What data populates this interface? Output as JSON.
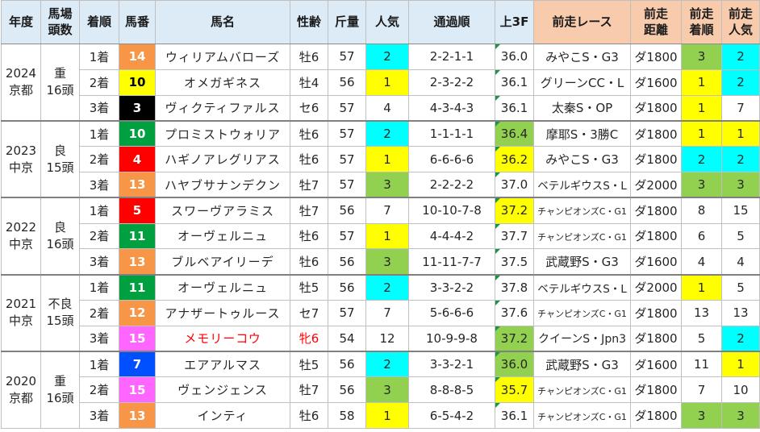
{
  "headers": [
    "年度",
    "馬場\n頭数",
    "着順",
    "馬番",
    "馬名",
    "性齢",
    "斤量",
    "人気",
    "通過順",
    "上3F",
    "前走レース",
    "前走\n距離",
    "前走\n着順",
    "前走\n人気"
  ],
  "colors": {
    "header_bg": "#DDEBF7",
    "header_prev_bg": "#F8CBAD",
    "highlight": {
      "yellow": "#FFFF00",
      "cyan": "#00FFFF",
      "green": "#92D050"
    },
    "waku": {
      "black": "#000000",
      "red": "#FF0000",
      "blue": "#0050FF",
      "yellow": "#FFFF00",
      "green": "#00A040",
      "orange": "#F79646",
      "pink": "#FF66FF"
    },
    "waku_text": {
      "black": "#FFFFFF",
      "red": "#FFFFFF",
      "blue": "#FFFFFF",
      "yellow": "#000000",
      "green": "#FFFFFF",
      "orange": "#FFFFFF",
      "pink": "#FFFFFF"
    }
  },
  "groups": [
    {
      "year": "2024",
      "venue": "京都",
      "going": "重",
      "field": "16頭",
      "rows": [
        {
          "finish": "1着",
          "num": "14",
          "waku": "orange",
          "name": "ウィリアムバローズ",
          "sexage": "牡6",
          "weight": "57",
          "pop": "2",
          "pop_hl": "cyan",
          "passing": "2-2-1-1",
          "last3f": "36.0",
          "last3f_hl": "",
          "prev_race": "みやこS・G3",
          "prev_dist": "ダ1800",
          "prev_finish": "3",
          "prev_finish_hl": "green",
          "prev_pop": "2",
          "prev_pop_hl": "cyan"
        },
        {
          "finish": "2着",
          "num": "10",
          "waku": "yellow",
          "name": "オメガギネス",
          "sexage": "牡4",
          "weight": "56",
          "pop": "1",
          "pop_hl": "yellow",
          "passing": "2-3-2-2",
          "last3f": "36.1",
          "last3f_hl": "",
          "prev_race": "グリーンCC・L",
          "prev_dist": "ダ1600",
          "prev_finish": "1",
          "prev_finish_hl": "yellow",
          "prev_pop": "2",
          "prev_pop_hl": "cyan"
        },
        {
          "finish": "3着",
          "num": "3",
          "waku": "black",
          "name": "ヴィクティファルス",
          "sexage": "セ6",
          "weight": "57",
          "pop": "4",
          "pop_hl": "",
          "passing": "4-3-4-3",
          "last3f": "36.1",
          "last3f_hl": "",
          "prev_race": "太秦S・OP",
          "prev_dist": "ダ1800",
          "prev_finish": "1",
          "prev_finish_hl": "yellow",
          "prev_pop": "7",
          "prev_pop_hl": ""
        }
      ]
    },
    {
      "year": "2023",
      "venue": "中京",
      "going": "良",
      "field": "15頭",
      "rows": [
        {
          "finish": "1着",
          "num": "10",
          "waku": "green",
          "name": "プロミストウォリア",
          "sexage": "牡6",
          "weight": "57",
          "pop": "2",
          "pop_hl": "cyan",
          "passing": "1-1-1-1",
          "last3f": "36.4",
          "last3f_hl": "green",
          "prev_race": "摩耶S・3勝C",
          "prev_dist": "ダ1800",
          "prev_finish": "1",
          "prev_finish_hl": "yellow",
          "prev_pop": "1",
          "prev_pop_hl": "yellow"
        },
        {
          "finish": "2着",
          "num": "4",
          "waku": "red",
          "name": "ハギノアレグリアス",
          "sexage": "牡6",
          "weight": "57",
          "pop": "1",
          "pop_hl": "yellow",
          "passing": "6-6-6-6",
          "last3f": "36.2",
          "last3f_hl": "yellow",
          "prev_race": "みやこS・G3",
          "prev_dist": "ダ1800",
          "prev_finish": "2",
          "prev_finish_hl": "cyan",
          "prev_pop": "2",
          "prev_pop_hl": "cyan"
        },
        {
          "finish": "3着",
          "num": "13",
          "waku": "orange",
          "name": "ハヤブサナンデクン",
          "sexage": "牡7",
          "weight": "57",
          "pop": "3",
          "pop_hl": "green",
          "passing": "2-2-2-2",
          "last3f": "37.0",
          "last3f_hl": "",
          "prev_race": "ベテルギウスS・L",
          "prev_dist": "ダ2000",
          "prev_finish": "3",
          "prev_finish_hl": "green",
          "prev_pop": "3",
          "prev_pop_hl": "green"
        }
      ]
    },
    {
      "year": "2022",
      "venue": "中京",
      "going": "良",
      "field": "16頭",
      "rows": [
        {
          "finish": "1着",
          "num": "5",
          "waku": "red",
          "name": "スワーヴアラミス",
          "sexage": "牡7",
          "weight": "56",
          "pop": "7",
          "pop_hl": "",
          "passing": "10-10-7-8",
          "last3f": "37.2",
          "last3f_hl": "yellow",
          "prev_race": "チャンピオンズC・G1",
          "prev_dist": "ダ1800",
          "prev_finish": "8",
          "prev_finish_hl": "",
          "prev_pop": "15",
          "prev_pop_hl": ""
        },
        {
          "finish": "2着",
          "num": "11",
          "waku": "green",
          "name": "オーヴェルニュ",
          "sexage": "牡6",
          "weight": "57",
          "pop": "1",
          "pop_hl": "yellow",
          "passing": "4-4-4-2",
          "last3f": "37.7",
          "last3f_hl": "",
          "prev_race": "チャンピオンズC・G1",
          "prev_dist": "ダ1800",
          "prev_finish": "6",
          "prev_finish_hl": "",
          "prev_pop": "5",
          "prev_pop_hl": ""
        },
        {
          "finish": "3着",
          "num": "13",
          "waku": "orange",
          "name": "ブルベアイリーデ",
          "sexage": "牡6",
          "weight": "56",
          "pop": "3",
          "pop_hl": "green",
          "passing": "11-11-7-7",
          "last3f": "37.5",
          "last3f_hl": "",
          "prev_race": "武蔵野S・G3",
          "prev_dist": "ダ1600",
          "prev_finish": "4",
          "prev_finish_hl": "",
          "prev_pop": "4",
          "prev_pop_hl": ""
        }
      ]
    },
    {
      "year": "2021",
      "venue": "中京",
      "going": "不良",
      "field": "15頭",
      "rows": [
        {
          "finish": "1着",
          "num": "11",
          "waku": "green",
          "name": "オーヴェルニュ",
          "sexage": "牡5",
          "weight": "56",
          "pop": "2",
          "pop_hl": "cyan",
          "passing": "3-3-2-2",
          "last3f": "37.8",
          "last3f_hl": "",
          "prev_race": "ベテルギウスS・L",
          "prev_dist": "ダ2000",
          "prev_finish": "1",
          "prev_finish_hl": "yellow",
          "prev_pop": "5",
          "prev_pop_hl": ""
        },
        {
          "finish": "2着",
          "num": "12",
          "waku": "orange",
          "name": "アナザートゥルース",
          "sexage": "セ7",
          "weight": "57",
          "pop": "7",
          "pop_hl": "",
          "passing": "5-6-6-6",
          "last3f": "37.6",
          "last3f_hl": "",
          "prev_race": "チャンピオンズC・G1",
          "prev_dist": "ダ1800",
          "prev_finish": "13",
          "prev_finish_hl": "",
          "prev_pop": "13",
          "prev_pop_hl": ""
        },
        {
          "finish": "3着",
          "num": "15",
          "waku": "pink",
          "name": "メモリーコウ",
          "sexage": "牝6",
          "weight": "54",
          "pop": "12",
          "pop_hl": "",
          "passing": "10-9-9-8",
          "last3f": "37.2",
          "last3f_hl": "green",
          "prev_race": "クイーンS・Jpn3",
          "prev_dist": "ダ1800",
          "prev_finish": "5",
          "prev_finish_hl": "",
          "prev_pop": "2",
          "prev_pop_hl": "cyan",
          "text_color": "#FF0000"
        }
      ]
    },
    {
      "year": "2020",
      "venue": "京都",
      "going": "重",
      "field": "16頭",
      "rows": [
        {
          "finish": "1着",
          "num": "7",
          "waku": "blue",
          "name": "エアアルマス",
          "sexage": "牡5",
          "weight": "56",
          "pop": "2",
          "pop_hl": "cyan",
          "passing": "3-3-2-1",
          "last3f": "36.0",
          "last3f_hl": "green",
          "prev_race": "武蔵野S・G3",
          "prev_dist": "ダ1600",
          "prev_finish": "11",
          "prev_finish_hl": "",
          "prev_pop": "1",
          "prev_pop_hl": "yellow"
        },
        {
          "finish": "2着",
          "num": "15",
          "waku": "pink",
          "name": "ヴェンジェンス",
          "sexage": "牡7",
          "weight": "56",
          "pop": "3",
          "pop_hl": "green",
          "passing": "8-8-8-5",
          "last3f": "35.7",
          "last3f_hl": "yellow",
          "prev_race": "チャンピオンズC・G1",
          "prev_dist": "ダ1800",
          "prev_finish": "7",
          "prev_finish_hl": "",
          "prev_pop": "10",
          "prev_pop_hl": ""
        },
        {
          "finish": "3着",
          "num": "13",
          "waku": "orange",
          "name": "インティ",
          "sexage": "牡6",
          "weight": "58",
          "pop": "1",
          "pop_hl": "yellow",
          "passing": "6-5-4-2",
          "last3f": "36.1",
          "last3f_hl": "",
          "prev_race": "チャンピオンズC・G1",
          "prev_dist": "ダ1800",
          "prev_finish": "3",
          "prev_finish_hl": "green",
          "prev_pop": "3",
          "prev_pop_hl": "green"
        }
      ]
    }
  ]
}
